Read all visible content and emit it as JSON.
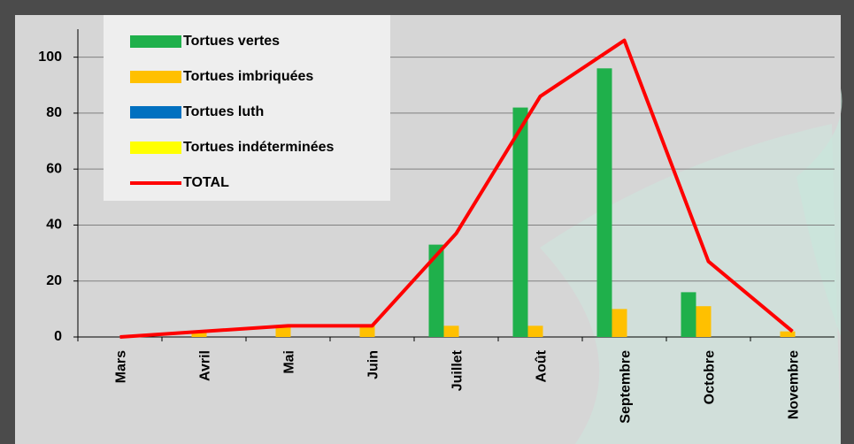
{
  "chart_data": {
    "type": "bar-line",
    "categories": [
      "Mars",
      "Avril",
      "Mai",
      "Juin",
      "Juillet",
      "Août",
      "Septembre",
      "Octobre",
      "Novembre"
    ],
    "series": [
      {
        "name": "Tortues vertes",
        "color": "#1fb04b",
        "type": "bar",
        "values": [
          0,
          0,
          0,
          0,
          33,
          82,
          96,
          16,
          0
        ]
      },
      {
        "name": "Tortues imbriquées",
        "color": "#ffc000",
        "type": "bar",
        "values": [
          0,
          2,
          4,
          4,
          4,
          4,
          10,
          11,
          2
        ]
      },
      {
        "name": "Tortues luth",
        "color": "#0070c0",
        "type": "bar",
        "values": [
          0,
          0,
          0,
          0,
          0,
          0,
          0,
          0,
          0
        ]
      },
      {
        "name": "Tortues indéterminées",
        "color": "#ffff00",
        "type": "bar",
        "values": [
          0,
          0,
          0,
          0,
          0,
          0,
          0,
          0,
          0
        ]
      },
      {
        "name": "TOTAL",
        "color": "#ff0000",
        "type": "line",
        "values": [
          0,
          2,
          4,
          4,
          37,
          86,
          106,
          27,
          2
        ]
      }
    ],
    "ylim": [
      0,
      110
    ],
    "yticks": [
      0,
      20,
      40,
      60,
      80,
      100
    ],
    "grid": true,
    "legend": "top-left"
  }
}
